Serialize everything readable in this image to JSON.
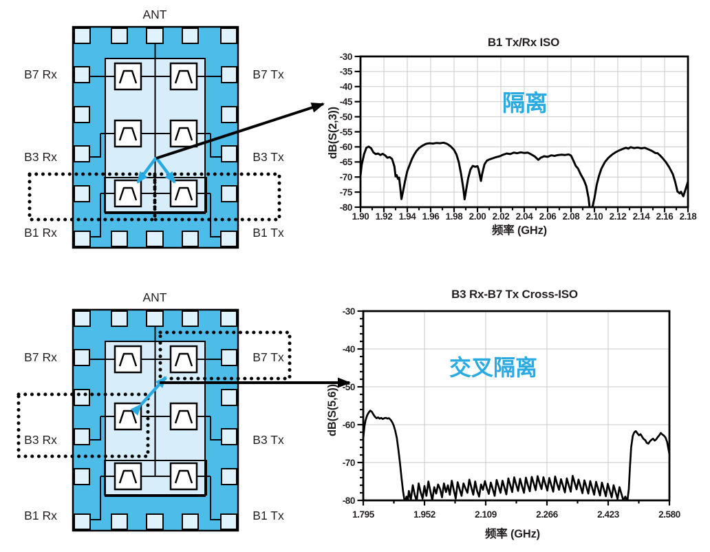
{
  "palette": {
    "accent_cyan": "#29ABE2",
    "chip_body_blue": "#4DBCE9",
    "pad_light_blue": "#E0F3FC",
    "die_light_blue": "#D7EDF9",
    "grid_gray": "#C9C9C9",
    "ink": "#231F20"
  },
  "diagrams": [
    {
      "ant": "ANT",
      "left": [
        "B7 Rx",
        "B3 Rx",
        "B1 Rx"
      ],
      "right": [
        "B7 Tx",
        "B3 Tx",
        "B1 Tx"
      ]
    },
    {
      "ant": "ANT",
      "left": [
        "B7 Rx",
        "B3 Rx",
        "B1 Rx"
      ],
      "right": [
        "B7 Tx",
        "B3 Tx",
        "B1 Tx"
      ]
    }
  ],
  "chart_data": [
    {
      "type": "line",
      "title": "B1 Tx/Rx ISO",
      "xlabel": "频率 (GHz)",
      "ylabel": "dB(S(2,3))",
      "annotation": "隔离",
      "xlim": [
        1.9,
        2.18
      ],
      "ylim": [
        -80,
        -30
      ],
      "grid": true,
      "xticks": [
        1.9,
        1.92,
        1.94,
        1.96,
        1.98,
        2.0,
        2.02,
        2.04,
        2.06,
        2.08,
        2.1,
        2.12,
        2.14,
        2.16,
        2.18
      ],
      "xtick_labels": [
        "1.90",
        "1.92",
        "1.94",
        "1.96",
        "1.98",
        "2.00",
        "2.02",
        "2.04",
        "2.06",
        "2.08",
        "2.10",
        "2.12",
        "2.14",
        "2.16",
        "2.18"
      ],
      "yticks": [
        -30,
        -35,
        -40,
        -45,
        -50,
        -55,
        -60,
        -65,
        -70,
        -75,
        -80
      ],
      "ytick_labels": [
        "-30",
        "-35",
        "-40",
        "-45",
        "-50",
        "-55",
        "-60",
        "-65",
        "-70",
        "-75",
        "-80"
      ],
      "y_minor": false,
      "points": [
        [
          1.9,
          -69.5
        ],
        [
          1.901,
          -66.0
        ],
        [
          1.903,
          -62.5
        ],
        [
          1.905,
          -60.3
        ],
        [
          1.907,
          -59.9
        ],
        [
          1.909,
          -60.4
        ],
        [
          1.911,
          -61.8
        ],
        [
          1.913,
          -62.4
        ],
        [
          1.915,
          -62.2
        ],
        [
          1.917,
          -62.7
        ],
        [
          1.919,
          -62.3
        ],
        [
          1.921,
          -62.8
        ],
        [
          1.923,
          -63.6
        ],
        [
          1.925,
          -63.4
        ],
        [
          1.927,
          -64.0
        ],
        [
          1.929,
          -66.5
        ],
        [
          1.93,
          -69.8
        ],
        [
          1.931,
          -69.4
        ],
        [
          1.932,
          -70.6
        ],
        [
          1.933,
          -70.2
        ],
        [
          1.934,
          -73.5
        ],
        [
          1.935,
          -77.3
        ],
        [
          1.936,
          -75.5
        ],
        [
          1.938,
          -71.5
        ],
        [
          1.94,
          -68.0
        ],
        [
          1.942,
          -66.0
        ],
        [
          1.944,
          -64.0
        ],
        [
          1.946,
          -62.5
        ],
        [
          1.948,
          -61.3
        ],
        [
          1.95,
          -60.4
        ],
        [
          1.953,
          -59.6
        ],
        [
          1.956,
          -59.0
        ],
        [
          1.959,
          -58.8
        ],
        [
          1.962,
          -58.9
        ],
        [
          1.965,
          -58.7
        ],
        [
          1.968,
          -58.8
        ],
        [
          1.971,
          -58.6
        ],
        [
          1.974,
          -59.0
        ],
        [
          1.977,
          -59.8
        ],
        [
          1.98,
          -61.0
        ],
        [
          1.982,
          -62.5
        ],
        [
          1.984,
          -65.0
        ],
        [
          1.986,
          -69.0
        ],
        [
          1.988,
          -74.0
        ],
        [
          1.989,
          -77.4
        ],
        [
          1.99,
          -75.0
        ],
        [
          1.992,
          -70.5
        ],
        [
          1.994,
          -67.5
        ],
        [
          1.996,
          -66.3
        ],
        [
          1.998,
          -66.6
        ],
        [
          2.0,
          -66.4
        ],
        [
          2.001,
          -67.5
        ],
        [
          2.003,
          -71.3
        ],
        [
          2.004,
          -69.0
        ],
        [
          2.006,
          -65.8
        ],
        [
          2.008,
          -64.6
        ],
        [
          2.01,
          -64.2
        ],
        [
          2.013,
          -63.8
        ],
        [
          2.016,
          -63.4
        ],
        [
          2.019,
          -63.1
        ],
        [
          2.022,
          -62.6
        ],
        [
          2.025,
          -62.2
        ],
        [
          2.028,
          -62.4
        ],
        [
          2.031,
          -61.9
        ],
        [
          2.034,
          -62.1
        ],
        [
          2.037,
          -61.8
        ],
        [
          2.04,
          -62.0
        ],
        [
          2.043,
          -61.9
        ],
        [
          2.046,
          -62.5
        ],
        [
          2.049,
          -63.2
        ],
        [
          2.052,
          -64.3
        ],
        [
          2.054,
          -63.6
        ],
        [
          2.057,
          -63.1
        ],
        [
          2.06,
          -63.3
        ],
        [
          2.063,
          -62.8
        ],
        [
          2.066,
          -63.0
        ],
        [
          2.069,
          -62.7
        ],
        [
          2.072,
          -62.6
        ],
        [
          2.075,
          -62.7
        ],
        [
          2.078,
          -62.5
        ],
        [
          2.08,
          -62.9
        ],
        [
          2.082,
          -64.5
        ],
        [
          2.084,
          -66.3
        ],
        [
          2.086,
          -67.2
        ],
        [
          2.088,
          -68.9
        ],
        [
          2.09,
          -70.3
        ],
        [
          2.091,
          -71.0
        ],
        [
          2.093,
          -73.0
        ],
        [
          2.095,
          -77.0
        ],
        [
          2.096,
          -80.4
        ],
        [
          2.098,
          -80.5
        ],
        [
          2.1,
          -77.0
        ],
        [
          2.102,
          -72.5
        ],
        [
          2.104,
          -69.5
        ],
        [
          2.106,
          -67.2
        ],
        [
          2.109,
          -65.0
        ],
        [
          2.112,
          -63.6
        ],
        [
          2.115,
          -62.6
        ],
        [
          2.118,
          -61.8
        ],
        [
          2.121,
          -61.2
        ],
        [
          2.124,
          -60.7
        ],
        [
          2.127,
          -60.3
        ],
        [
          2.129,
          -60.6
        ],
        [
          2.131,
          -60.1
        ],
        [
          2.134,
          -60.4
        ],
        [
          2.137,
          -60.2
        ],
        [
          2.14,
          -60.5
        ],
        [
          2.143,
          -60.3
        ],
        [
          2.146,
          -60.8
        ],
        [
          2.149,
          -61.3
        ],
        [
          2.152,
          -62.0
        ],
        [
          2.154,
          -62.1
        ],
        [
          2.156,
          -62.8
        ],
        [
          2.158,
          -63.6
        ],
        [
          2.161,
          -65.0
        ],
        [
          2.164,
          -66.8
        ],
        [
          2.167,
          -69.0
        ],
        [
          2.169,
          -71.5
        ],
        [
          2.171,
          -74.8
        ],
        [
          2.173,
          -75.4
        ],
        [
          2.174,
          -74.9
        ],
        [
          2.176,
          -76.4
        ],
        [
          2.178,
          -74.0
        ],
        [
          2.18,
          -71.5
        ]
      ]
    },
    {
      "type": "line",
      "title": "B3 Rx-B7 Tx Cross-ISO",
      "xlabel": "频率 (GHz)",
      "ylabel": "dB(S(5,6))",
      "annotation": "交叉隔离",
      "xlim": [
        1.795,
        2.58
      ],
      "ylim": [
        -80,
        -30
      ],
      "grid": true,
      "xticks": [
        1.795,
        1.952,
        2.109,
        2.266,
        2.423,
        2.58
      ],
      "xtick_labels": [
        "1.795",
        "1.952",
        "2.109",
        "2.266",
        "2.423",
        "2.580"
      ],
      "yticks": [
        -30,
        -40,
        -50,
        -60,
        -70,
        -80
      ],
      "ytick_labels": [
        "-30",
        "-40",
        "-50",
        "-60",
        "-70",
        "-80"
      ],
      "y_minor": true,
      "points": [
        [
          1.795,
          -63.5
        ],
        [
          1.798,
          -60.5
        ],
        [
          1.801,
          -58.8
        ],
        [
          1.805,
          -57.5
        ],
        [
          1.809,
          -56.8
        ],
        [
          1.813,
          -56.3
        ],
        [
          1.817,
          -56.6
        ],
        [
          1.821,
          -57.3
        ],
        [
          1.825,
          -57.9
        ],
        [
          1.829,
          -58.3
        ],
        [
          1.833,
          -58.1
        ],
        [
          1.837,
          -58.4
        ],
        [
          1.841,
          -58.2
        ],
        [
          1.845,
          -58.5
        ],
        [
          1.849,
          -58.3
        ],
        [
          1.853,
          -58.2
        ],
        [
          1.857,
          -58.4
        ],
        [
          1.861,
          -58.3
        ],
        [
          1.865,
          -58.7
        ],
        [
          1.869,
          -59.3
        ],
        [
          1.873,
          -60.2
        ],
        [
          1.877,
          -61.6
        ],
        [
          1.881,
          -63.5
        ],
        [
          1.885,
          -66.5
        ],
        [
          1.889,
          -70.0
        ],
        [
          1.893,
          -74.0
        ],
        [
          1.897,
          -77.5
        ],
        [
          1.9,
          -79.5
        ],
        [
          1.903,
          -80.2
        ],
        [
          1.906,
          -79.0
        ],
        [
          1.909,
          -80.4
        ],
        [
          1.912,
          -77.5
        ],
        [
          1.917,
          -79.8
        ],
        [
          1.922,
          -76.0
        ],
        [
          1.927,
          -78.5
        ],
        [
          1.932,
          -80.2
        ],
        [
          1.937,
          -75.5
        ],
        [
          1.942,
          -77.8
        ],
        [
          1.947,
          -79.5
        ],
        [
          1.952,
          -76.2
        ],
        [
          1.957,
          -78.8
        ],
        [
          1.962,
          -75.0
        ],
        [
          1.967,
          -77.5
        ],
        [
          1.972,
          -80.0
        ],
        [
          1.977,
          -76.5
        ],
        [
          1.982,
          -78.2
        ],
        [
          1.987,
          -75.8
        ],
        [
          1.992,
          -77.0
        ],
        [
          1.997,
          -79.2
        ],
        [
          2.002,
          -75.5
        ],
        [
          2.007,
          -77.8
        ],
        [
          2.012,
          -76.0
        ],
        [
          2.017,
          -78.5
        ],
        [
          2.022,
          -74.8
        ],
        [
          2.027,
          -77.2
        ],
        [
          2.032,
          -79.5
        ],
        [
          2.037,
          -75.2
        ],
        [
          2.042,
          -77.0
        ],
        [
          2.047,
          -78.8
        ],
        [
          2.052,
          -75.5
        ],
        [
          2.057,
          -76.8
        ],
        [
          2.062,
          -78.0
        ],
        [
          2.067,
          -74.5
        ],
        [
          2.072,
          -76.5
        ],
        [
          2.077,
          -78.5
        ],
        [
          2.082,
          -75.0
        ],
        [
          2.087,
          -77.5
        ],
        [
          2.092,
          -79.0
        ],
        [
          2.097,
          -75.8
        ],
        [
          2.102,
          -77.2
        ],
        [
          2.107,
          -74.9
        ],
        [
          2.112,
          -76.8
        ],
        [
          2.117,
          -78.3
        ],
        [
          2.122,
          -75.3
        ],
        [
          2.127,
          -77.0
        ],
        [
          2.132,
          -78.8
        ],
        [
          2.137,
          -74.6
        ],
        [
          2.142,
          -76.3
        ],
        [
          2.147,
          -78.0
        ],
        [
          2.152,
          -74.8
        ],
        [
          2.157,
          -76.6
        ],
        [
          2.162,
          -78.4
        ],
        [
          2.167,
          -74.2
        ],
        [
          2.172,
          -76.0
        ],
        [
          2.177,
          -77.8
        ],
        [
          2.182,
          -73.9
        ],
        [
          2.187,
          -75.8
        ],
        [
          2.192,
          -77.5
        ],
        [
          2.197,
          -74.3
        ],
        [
          2.202,
          -76.2
        ],
        [
          2.207,
          -78.0
        ],
        [
          2.212,
          -74.0
        ],
        [
          2.217,
          -75.9
        ],
        [
          2.222,
          -77.6
        ],
        [
          2.227,
          -73.8
        ],
        [
          2.232,
          -75.5
        ],
        [
          2.237,
          -77.3
        ],
        [
          2.242,
          -73.6
        ],
        [
          2.247,
          -75.4
        ],
        [
          2.252,
          -77.0
        ],
        [
          2.257,
          -73.9
        ],
        [
          2.262,
          -75.7
        ],
        [
          2.267,
          -77.4
        ],
        [
          2.272,
          -74.1
        ],
        [
          2.277,
          -75.9
        ],
        [
          2.282,
          -77.7
        ],
        [
          2.287,
          -73.7
        ],
        [
          2.292,
          -75.6
        ],
        [
          2.297,
          -77.2
        ],
        [
          2.302,
          -74.4
        ],
        [
          2.307,
          -76.1
        ],
        [
          2.312,
          -77.9
        ],
        [
          2.317,
          -74.2
        ],
        [
          2.322,
          -76.0
        ],
        [
          2.327,
          -77.7
        ],
        [
          2.332,
          -73.5
        ],
        [
          2.337,
          -75.3
        ],
        [
          2.342,
          -77.1
        ],
        [
          2.347,
          -74.5
        ],
        [
          2.352,
          -76.3
        ],
        [
          2.357,
          -78.1
        ],
        [
          2.362,
          -74.7
        ],
        [
          2.367,
          -76.4
        ],
        [
          2.372,
          -78.2
        ],
        [
          2.377,
          -74.9
        ],
        [
          2.382,
          -76.7
        ],
        [
          2.387,
          -78.5
        ],
        [
          2.392,
          -75.1
        ],
        [
          2.397,
          -76.9
        ],
        [
          2.402,
          -78.7
        ],
        [
          2.407,
          -75.3
        ],
        [
          2.412,
          -77.1
        ],
        [
          2.417,
          -78.9
        ],
        [
          2.422,
          -75.6
        ],
        [
          2.427,
          -77.4
        ],
        [
          2.432,
          -79.2
        ],
        [
          2.437,
          -76.0
        ],
        [
          2.442,
          -77.8
        ],
        [
          2.447,
          -79.6
        ],
        [
          2.452,
          -76.5
        ],
        [
          2.457,
          -78.3
        ],
        [
          2.462,
          -80.0
        ],
        [
          2.467,
          -79.0
        ],
        [
          2.472,
          -80.3
        ],
        [
          2.476,
          -77.0
        ],
        [
          2.479,
          -71.0
        ],
        [
          2.482,
          -66.0
        ],
        [
          2.486,
          -63.0
        ],
        [
          2.49,
          -62.0
        ],
        [
          2.494,
          -61.7
        ],
        [
          2.498,
          -62.3
        ],
        [
          2.502,
          -62.8
        ],
        [
          2.506,
          -62.5
        ],
        [
          2.51,
          -63.2
        ],
        [
          2.514,
          -63.8
        ],
        [
          2.518,
          -64.1
        ],
        [
          2.522,
          -64.8
        ],
        [
          2.526,
          -65.0
        ],
        [
          2.53,
          -64.4
        ],
        [
          2.534,
          -64.0
        ],
        [
          2.538,
          -63.7
        ],
        [
          2.542,
          -64.2
        ],
        [
          2.546,
          -63.9
        ],
        [
          2.55,
          -63.3
        ],
        [
          2.554,
          -62.8
        ],
        [
          2.558,
          -62.2
        ],
        [
          2.562,
          -62.6
        ],
        [
          2.566,
          -62.9
        ],
        [
          2.57,
          -63.4
        ],
        [
          2.574,
          -64.5
        ],
        [
          2.58,
          -67.8
        ]
      ]
    }
  ]
}
